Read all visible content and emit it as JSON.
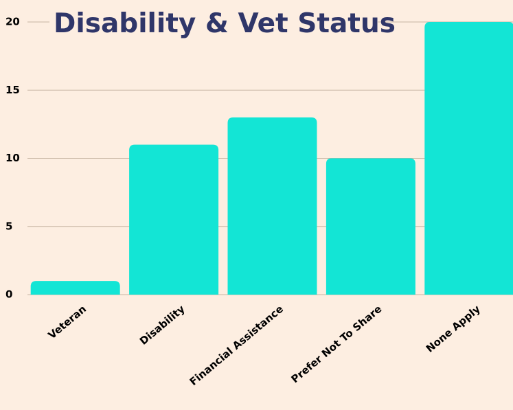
{
  "chart_data": {
    "type": "bar",
    "title": "Disability & Vet Status",
    "categories": [
      "Veteran",
      "Disability",
      "Financial Assistance",
      "Prefer Not To Share",
      "None Apply"
    ],
    "values": [
      1,
      11,
      13,
      10,
      20
    ],
    "color": "#13e5d5",
    "ylim": [
      0,
      20
    ],
    "yticks": [
      0,
      5,
      10,
      15,
      20
    ],
    "grid": true
  }
}
